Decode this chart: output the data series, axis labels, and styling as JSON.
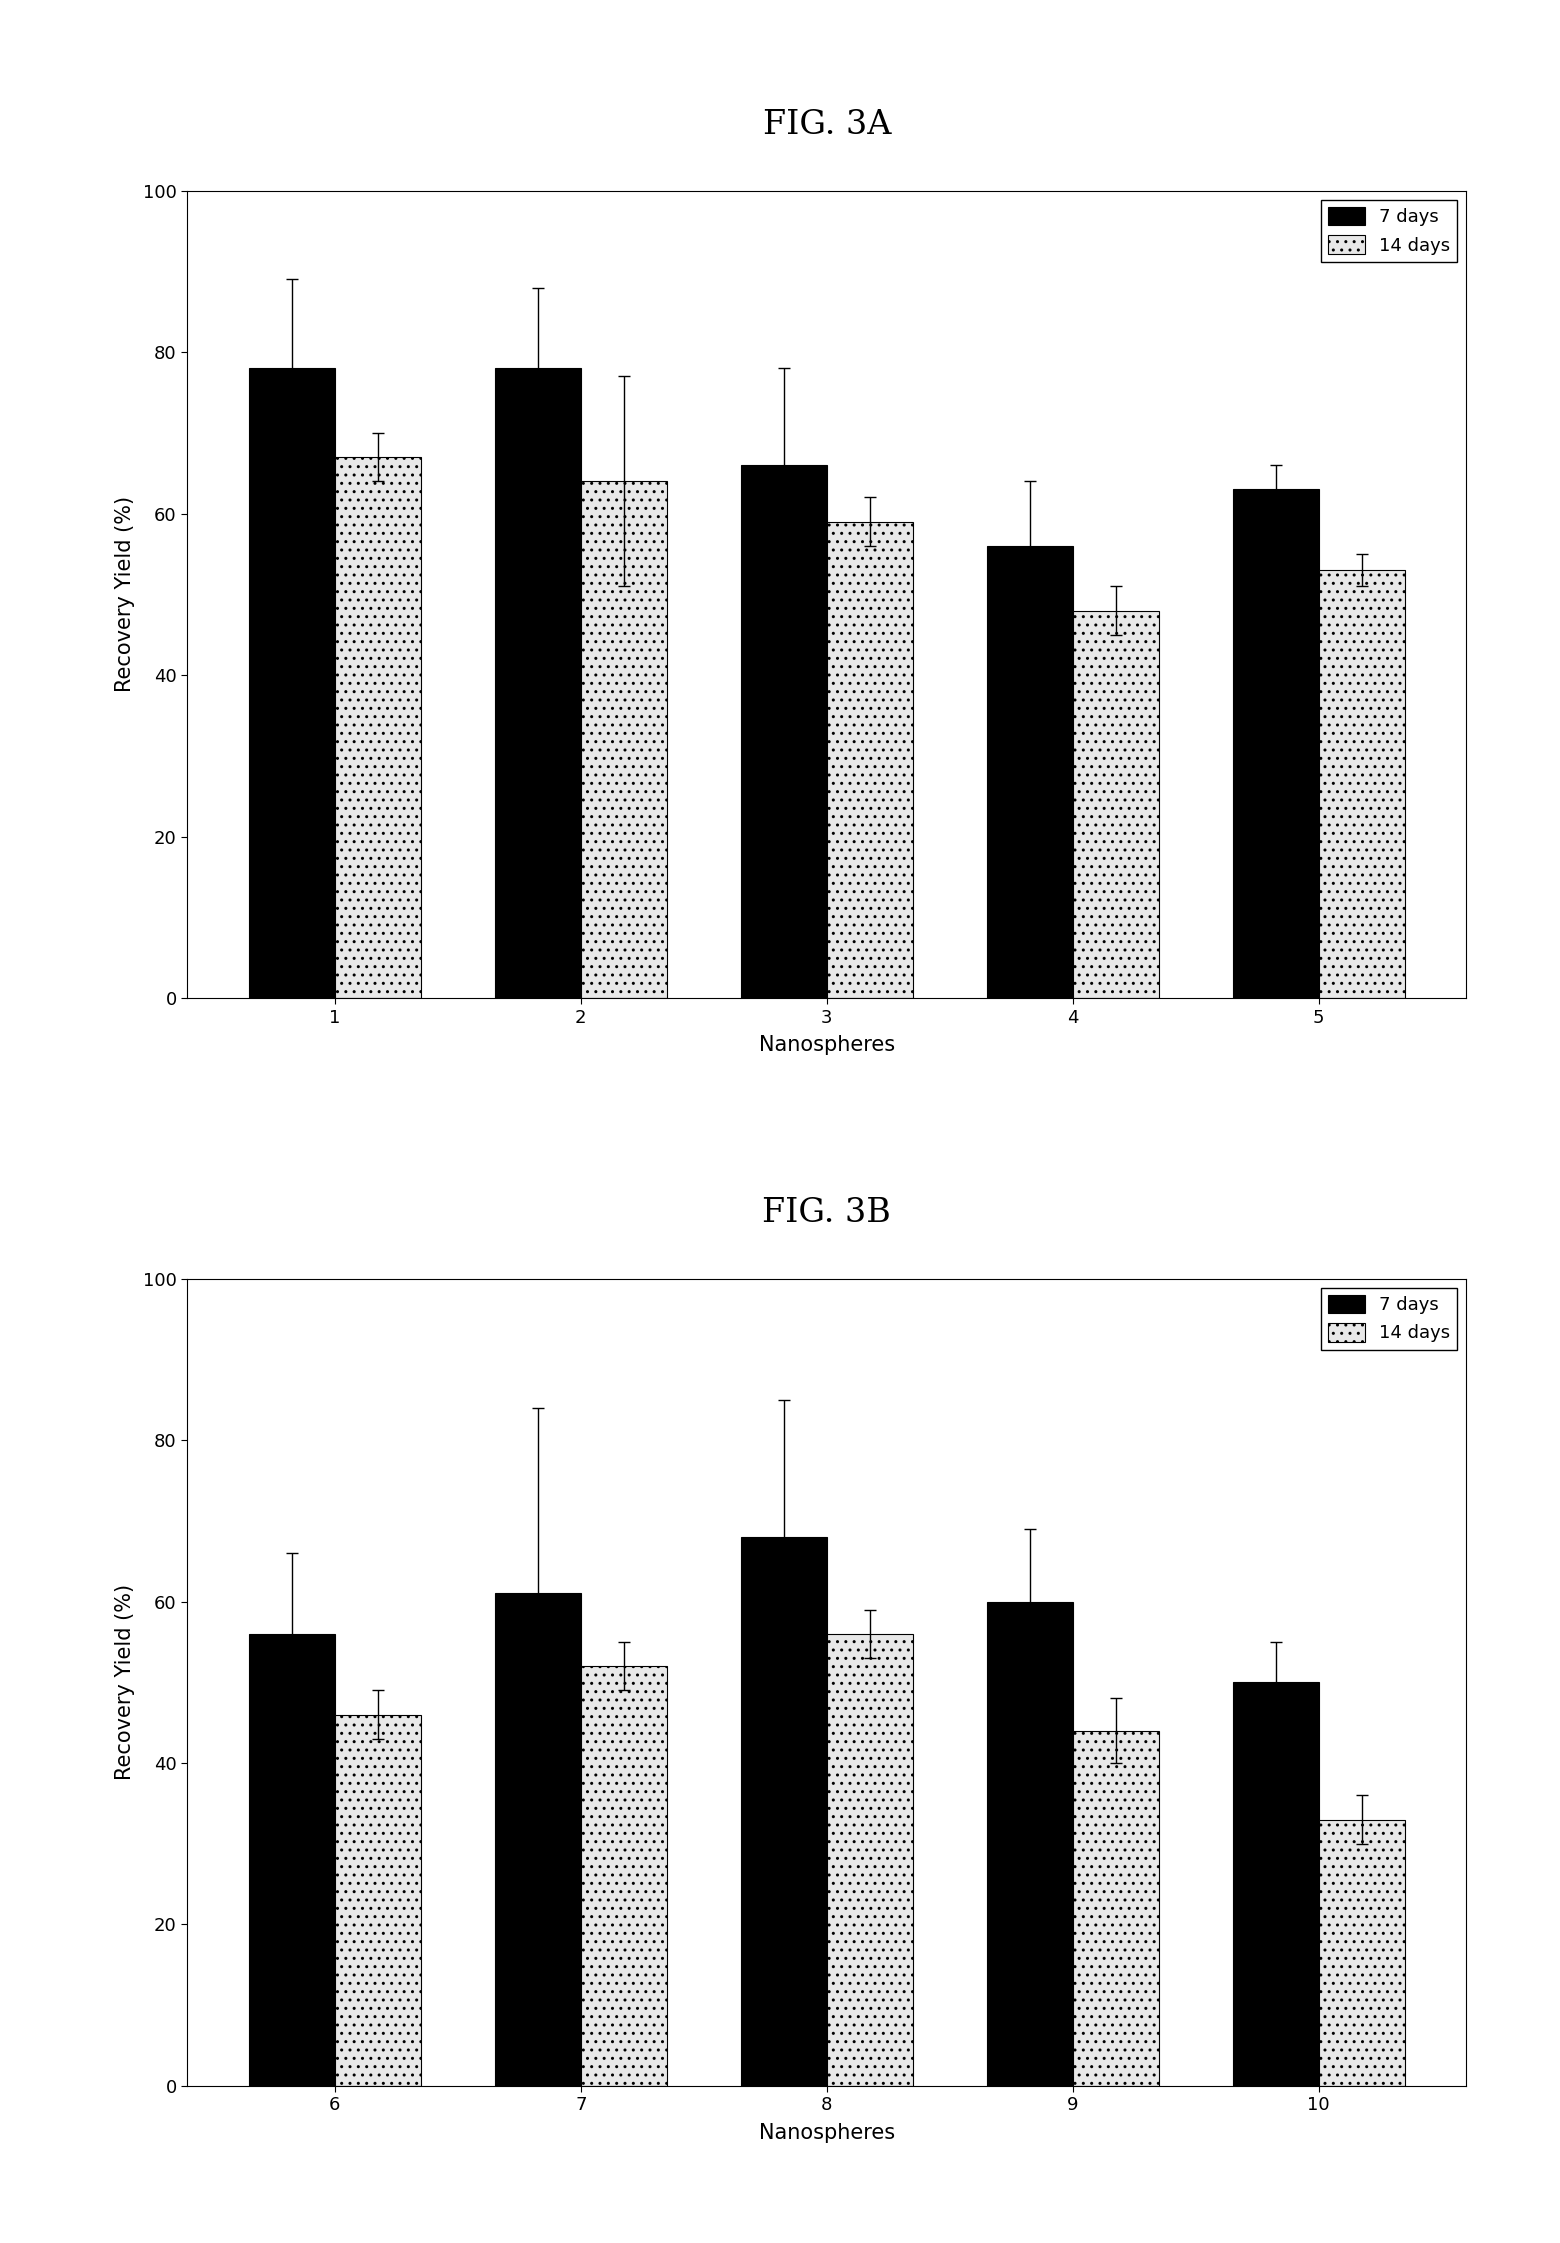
{
  "fig3a": {
    "title": "FIG. 3A",
    "categories": [
      "1",
      "2",
      "3",
      "4",
      "5"
    ],
    "days7_values": [
      78,
      78,
      66,
      56,
      63
    ],
    "days14_values": [
      67,
      64,
      59,
      48,
      53
    ],
    "days7_errors": [
      11,
      10,
      12,
      8,
      3
    ],
    "days14_errors": [
      3,
      13,
      3,
      3,
      2
    ],
    "xlabel": "Nanospheres",
    "ylabel": "Recovery Yield (%)",
    "ylim": [
      0,
      100
    ],
    "yticks": [
      0,
      20,
      40,
      60,
      80,
      100
    ]
  },
  "fig3b": {
    "title": "FIG. 3B",
    "categories": [
      "6",
      "7",
      "8",
      "9",
      "10"
    ],
    "days7_values": [
      56,
      61,
      68,
      60,
      50
    ],
    "days14_values": [
      46,
      52,
      56,
      44,
      33
    ],
    "days7_errors": [
      10,
      23,
      17,
      9,
      5
    ],
    "days14_errors": [
      3,
      3,
      3,
      4,
      3
    ],
    "xlabel": "Nanospheres",
    "ylabel": "Recovery Yield (%)",
    "ylim": [
      0,
      100
    ],
    "yticks": [
      0,
      20,
      40,
      60,
      80,
      100
    ]
  },
  "bar_width": 0.35,
  "color_7days": "#000000",
  "color_14days_hatch": "..",
  "color_14days_face": "#e8e8e8",
  "legend_labels": [
    "7 days",
    "14 days"
  ],
  "title_fontsize": 24,
  "label_fontsize": 15,
  "tick_fontsize": 13,
  "legend_fontsize": 13
}
